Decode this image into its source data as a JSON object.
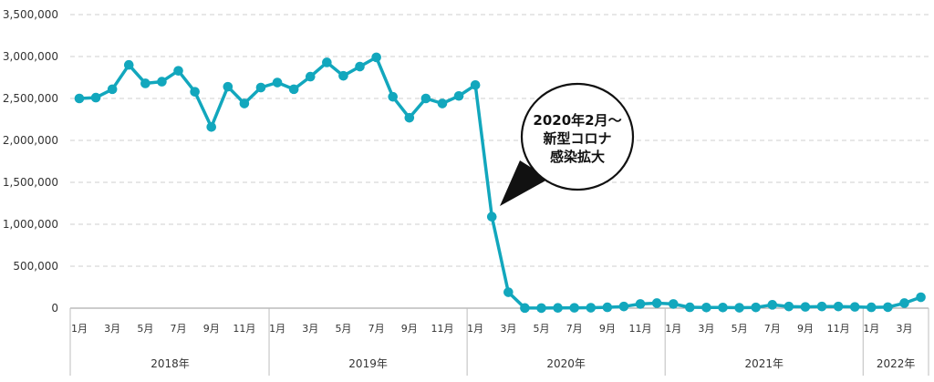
{
  "chart_data": {
    "type": "line",
    "title": "",
    "xlabel": "",
    "ylabel": "",
    "ylim": [
      0,
      3500000
    ],
    "yticks": [
      0,
      500000,
      1000000,
      1500000,
      2000000,
      2500000,
      3000000,
      3500000
    ],
    "ytick_labels": [
      "0",
      "500,000",
      "1,000,000",
      "1,500,000",
      "2,000,000",
      "2,500,000",
      "3,000,000",
      "3,500,000"
    ],
    "grid": true,
    "line_color": "#12a7bd",
    "x_month_labels": [
      {
        "index": 0,
        "label": "1月"
      },
      {
        "index": 2,
        "label": "3月"
      },
      {
        "index": 4,
        "label": "5月"
      },
      {
        "index": 6,
        "label": "7月"
      },
      {
        "index": 8,
        "label": "9月"
      },
      {
        "index": 10,
        "label": "11月"
      },
      {
        "index": 12,
        "label": "1月"
      },
      {
        "index": 14,
        "label": "3月"
      },
      {
        "index": 16,
        "label": "5月"
      },
      {
        "index": 18,
        "label": "7月"
      },
      {
        "index": 20,
        "label": "9月"
      },
      {
        "index": 22,
        "label": "11月"
      },
      {
        "index": 24,
        "label": "1月"
      },
      {
        "index": 26,
        "label": "3月"
      },
      {
        "index": 28,
        "label": "5月"
      },
      {
        "index": 30,
        "label": "7月"
      },
      {
        "index": 32,
        "label": "9月"
      },
      {
        "index": 34,
        "label": "11月"
      },
      {
        "index": 36,
        "label": "1月"
      },
      {
        "index": 38,
        "label": "3月"
      },
      {
        "index": 40,
        "label": "5月"
      },
      {
        "index": 42,
        "label": "7月"
      },
      {
        "index": 44,
        "label": "9月"
      },
      {
        "index": 46,
        "label": "11月"
      },
      {
        "index": 48,
        "label": "1月"
      },
      {
        "index": 50,
        "label": "3月"
      }
    ],
    "year_groups": [
      {
        "label": "2018年",
        "start": 0,
        "end": 11
      },
      {
        "label": "2019年",
        "start": 12,
        "end": 23
      },
      {
        "label": "2020年",
        "start": 24,
        "end": 35
      },
      {
        "label": "2021年",
        "start": 36,
        "end": 47
      },
      {
        "label": "2022年",
        "start": 48,
        "end": 51
      }
    ],
    "series": [
      {
        "values": [
          2500000,
          2510000,
          2610000,
          2900000,
          2680000,
          2700000,
          2830000,
          2580000,
          2160000,
          2640000,
          2440000,
          2630000,
          2690000,
          2610000,
          2760000,
          2930000,
          2770000,
          2880000,
          2990000,
          2520000,
          2270000,
          2500000,
          2440000,
          2530000,
          2660000,
          1090000,
          190000,
          2000,
          1000,
          3000,
          4000,
          5000,
          10000,
          20000,
          50000,
          60000,
          50000,
          10000,
          8000,
          8000,
          5000,
          9000,
          40000,
          20000,
          15000,
          20000,
          20000,
          15000,
          10000,
          12000,
          60000,
          130000
        ]
      }
    ],
    "annotation": {
      "lines": [
        "2020年2月～",
        "新型コロナ",
        "感染拡大"
      ],
      "points_to_index": 25
    }
  }
}
